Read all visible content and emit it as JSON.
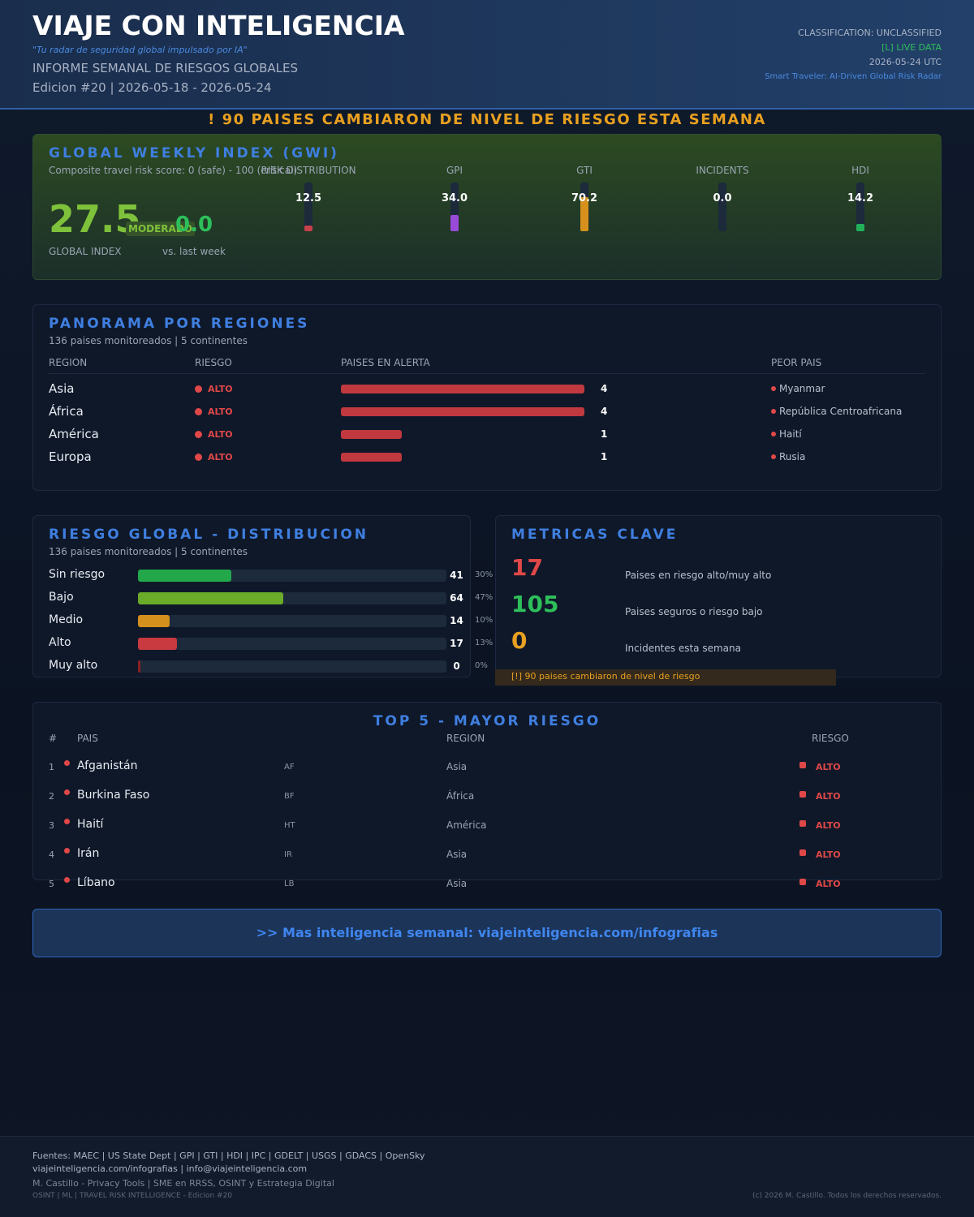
{
  "header": {
    "title": "VIAJE CON INTELIGENCIA",
    "tagline": "\"Tu radar de seguridad global impulsado por IA\"",
    "subtitle": "INFORME SEMANAL DE RIESGOS GLOBALES",
    "edition": "Edicion #20 | 2026-05-18 - 2026-05-24",
    "classification": "CLASSIFICATION: UNCLASSIFIED",
    "live": "[L] LIVE DATA",
    "date": "2026-05-24 UTC",
    "brand": "Smart Traveler: AI-Driven Global Risk Radar"
  },
  "alert_banner": "! 90 PAISES CAMBIARON DE NIVEL DE RIESGO ESTA SEMANA",
  "gwi": {
    "title": "GLOBAL WEEKLY INDEX (GWI)",
    "description": "Composite travel risk score: 0 (safe) - 100 (critical)",
    "value": 27.5,
    "level": "MODERADO",
    "change": {
      "value": 0,
      "label": "0.0"
    },
    "value_caption": "GLOBAL INDEX",
    "change_caption": "vs. last week",
    "gauges": {
      "type": "bar",
      "categories": [
        "RISK DISTRIBUTION",
        "GPI",
        "GTI",
        "INCIDENTS",
        "HDI"
      ],
      "values": [
        12.5,
        34.0,
        70.2,
        0.0,
        14.2
      ],
      "value_labels": [
        "12.5",
        "34.0",
        "70.2",
        "0.0",
        "14.2"
      ],
      "colors": [
        "#c8404a",
        "#9a4ad8",
        "#d8901c",
        "#6a7080",
        "#22b05a"
      ],
      "ylim": [
        0,
        100
      ]
    }
  },
  "regions": {
    "title": "PANORAMA POR REGIONES",
    "subtitle": "136 paises monitoreados | 5 continentes",
    "columns": [
      "REGION",
      "RIESGO",
      "PAISES EN ALERTA",
      "PEOR PAIS"
    ],
    "chart": {
      "type": "bar",
      "categories": [
        "Asia",
        "África",
        "América",
        "Europa"
      ],
      "risk": [
        "ALTO",
        "ALTO",
        "ALTO",
        "ALTO"
      ],
      "values": [
        4,
        4,
        1,
        1
      ],
      "worst": [
        "Myanmar",
        "República Centroafricana",
        "Haití",
        "Rusia"
      ],
      "color": "#c0393f",
      "xlim": [
        0,
        4
      ]
    }
  },
  "distribution": {
    "title": "RIESGO GLOBAL - DISTRIBUCION",
    "subtitle": "136 paises monitoreados | 5 continentes",
    "chart": {
      "type": "bar",
      "categories": [
        "Sin riesgo",
        "Bajo",
        "Medio",
        "Alto",
        "Muy alto"
      ],
      "values": [
        41,
        64,
        14,
        17,
        0
      ],
      "share_labels": [
        "30%",
        "47%",
        "10%",
        "13%",
        "0%"
      ],
      "colors": [
        "#22a84a",
        "#6aab2a",
        "#d4901c",
        "#c83a40",
        "#8a2020"
      ],
      "xlim": [
        0,
        136
      ]
    }
  },
  "metrics": {
    "title": "METRICAS CLAVE",
    "items": [
      {
        "value": 17,
        "label": "Paises en riesgo alto/muy alto",
        "color": "#e04848"
      },
      {
        "value": 105,
        "label": "Paises seguros o riesgo bajo",
        "color": "#2dbf5a"
      },
      {
        "value": 0,
        "label": "Incidentes esta semana",
        "color": "#e8a020"
      }
    ],
    "note": "[!] 90 paises cambiaron de nivel de riesgo"
  },
  "top5": {
    "title": "TOP 5 - MAYOR RIESGO",
    "columns": [
      "#",
      "PAIS",
      "REGION",
      "RIESGO"
    ],
    "rows": [
      [
        1,
        "Afganistán",
        "AF",
        "Asia",
        "ALTO"
      ],
      [
        2,
        "Burkina Faso",
        "BF",
        "África",
        "ALTO"
      ],
      [
        3,
        "Haití",
        "HT",
        "América",
        "ALTO"
      ],
      [
        4,
        "Irán",
        "IR",
        "Asia",
        "ALTO"
      ],
      [
        5,
        "Líbano",
        "LB",
        "Asia",
        "ALTO"
      ]
    ]
  },
  "cta": ">> Mas inteligencia semanal: viajeinteligencia.com/infografias",
  "footer": {
    "sources": "Fuentes: MAEC | US State Dept | GPI | GTI | HDI | IPC | GDELT | USGS | GDACS | OpenSky",
    "contact": "viajeinteligencia.com/infografias | info@viajeinteligencia.com",
    "author": "M. Castillo - Privacy Tools | SME en RRSS, OSINT y Estrategia Digital",
    "tags": "OSINT | ML | TRAVEL RISK INTELLIGENCE - Edicion #20",
    "copyright": "(c) 2026 M. Castillo. Todos los derechos reservados."
  }
}
